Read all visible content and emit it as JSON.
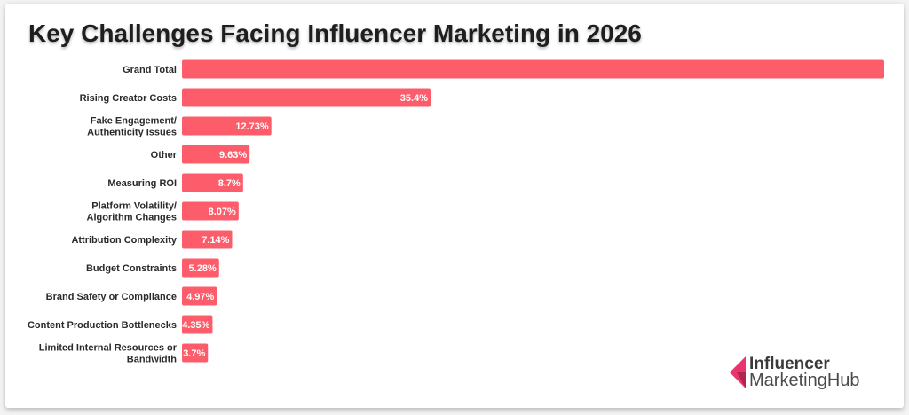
{
  "chart_data": {
    "type": "bar",
    "orientation": "horizontal",
    "title": "Key Challenges Facing Influencer Marketing in 2026",
    "categories": [
      "Grand Total",
      "Rising Creator Costs",
      "Fake Engagement/\nAuthenticity Issues",
      "Other",
      "Measuring ROI",
      "Platform Volatility/\nAlgorithm Changes",
      "Attribution Complexity",
      "Budget Constraints",
      "Brand Safety or Compliance",
      "Content Production Bottlenecks",
      "Limited Internal Resources or\nBandwidth"
    ],
    "values": [
      100,
      35.4,
      12.73,
      9.63,
      8.7,
      8.07,
      7.14,
      5.28,
      4.97,
      4.35,
      3.7
    ],
    "data_labels": [
      "",
      "35.4%",
      "12.73%",
      "9.63%",
      "8.7%",
      "8.07%",
      "7.14%",
      "5.28%",
      "4.97%",
      "4.35%",
      "3.7%"
    ],
    "xlim": [
      0,
      100
    ],
    "xlabel": "",
    "ylabel": "",
    "grid": false,
    "bar_color": "#fd5c6b"
  },
  "logo": {
    "line1": "Influencer",
    "line2": "MarketingHub",
    "color": "#e8356d"
  }
}
